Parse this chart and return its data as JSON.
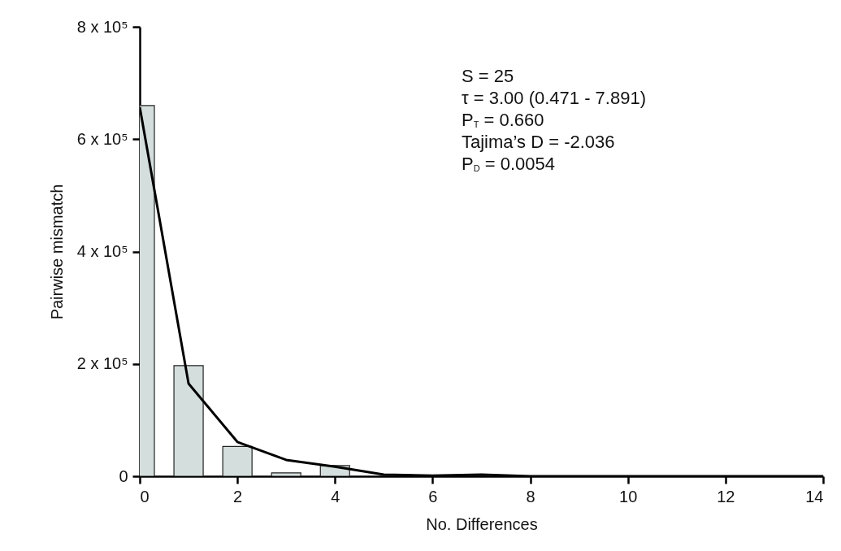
{
  "chart_data": {
    "type": "bar",
    "xlabel": "No. Differences",
    "ylabel": "Pairwise mismatch",
    "series": [
      {
        "color": "#d4dedd",
        "x": [
          0,
          1,
          2,
          3,
          4
        ],
        "values": [
          660000,
          197000,
          53000,
          6000,
          19000
        ]
      },
      {
        "type": "line",
        "color": "#000000",
        "x": [
          0,
          1,
          2,
          3,
          4,
          5,
          6,
          7,
          8,
          9,
          10,
          11,
          12,
          13,
          14
        ],
        "values": [
          657000,
          165000,
          61000,
          29000,
          17000,
          3000,
          1000,
          3000,
          0,
          0,
          0,
          0,
          0,
          0,
          0
        ]
      }
    ],
    "xlim": [
      0,
      14
    ],
    "xticks": [
      0,
      2,
      4,
      6,
      8,
      10,
      12,
      14
    ],
    "ylim": [
      0,
      800000
    ],
    "yticks": [
      0,
      {
        "value": 200000,
        "label": "2 x 10⁵"
      },
      {
        "value": 400000,
        "label": "4 x 10⁵"
      },
      {
        "value": 600000,
        "label": "6 x 10⁵"
      },
      {
        "value": 800000,
        "label": "8 x 10⁵"
      }
    ],
    "grid": false,
    "annotations": [
      "S = 25",
      "τ = 3.00 (0.471 - 7.891)",
      "P$_{T}$ = 0.660",
      "Tajima’s D = -2.036",
      "P$_{D}$ = 0.0054"
    ]
  }
}
